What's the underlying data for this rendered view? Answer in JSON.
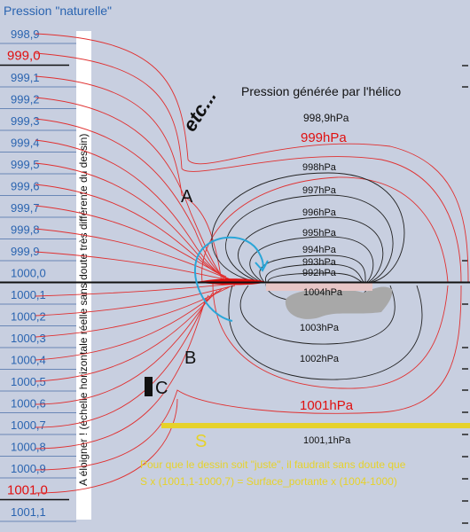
{
  "left_header": "Pression \"naturelle\"",
  "scale_labels": [
    "998,9",
    "999,0",
    "999,1",
    "999,2",
    "999,3",
    "999,4",
    "999,5",
    "999,6",
    "999,7",
    "999,8",
    "999,9",
    "1000,0",
    "1000,1",
    "1000,2",
    "1000,3",
    "1000,4",
    "1000,5",
    "1000,6",
    "1000,7",
    "1000,8",
    "1000,9",
    "1001,0",
    "1001,1"
  ],
  "highlighted_scale_labels": [
    "999,0",
    "1001,0"
  ],
  "vertical_note": "A éloigner ! (échelle horizontale réelle sans doute très différente du dessin)",
  "etc_label": "etc...",
  "helico_title": "Pression générée par l'hélico",
  "contour_labels": [
    "998,9hPa",
    "999hPa",
    "998hPa",
    "997hPa",
    "996hPa",
    "995hPa",
    "994hPa",
    "993hPa",
    "992hPa",
    "1004hPa",
    "1003hPa",
    "1002hPa",
    "1001hPa",
    "1001,1hPa"
  ],
  "point_labels": {
    "a": "A",
    "b": "B",
    "c": "C",
    "s": "S"
  },
  "note_lines": [
    "Pour que le dessin soit \"juste\", il faudrait sans doute que",
    "S x (1001,1-1000,7) = Surface_portante x (1004-1000)"
  ],
  "colors": {
    "background": "#c8cfe0",
    "scale_text": "#2a64b0",
    "highlight_text": "#e01010",
    "red_lines": "#e03030",
    "black_lines": "#222222",
    "yellow": "#e6d22a",
    "arrow": "#2aa6d8",
    "blob": "#a8a8a8"
  }
}
